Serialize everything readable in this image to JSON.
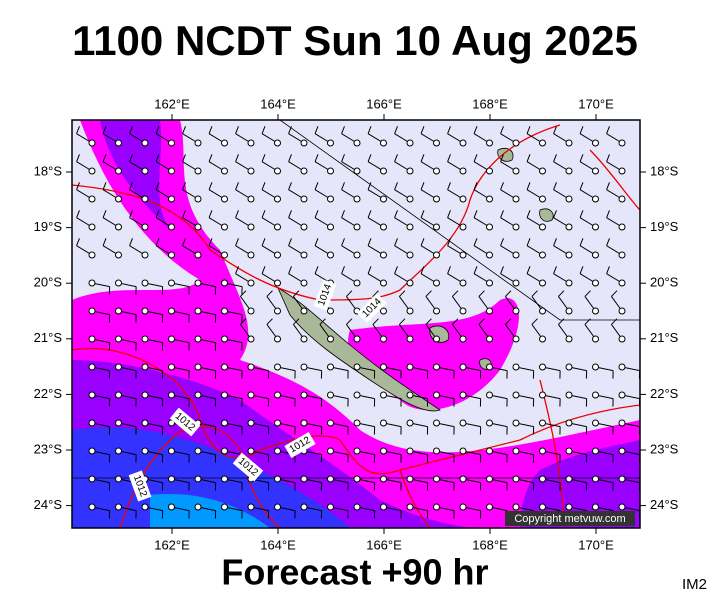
{
  "title": "1100 NCDT Sun 10 Aug 2025",
  "map": {
    "lon_labels": [
      "162°E",
      "164°E",
      "166°E",
      "168°E",
      "170°E"
    ],
    "lat_labels": [
      "18°S",
      "19°S",
      "20°S",
      "21°S",
      "22°S",
      "23°S",
      "24°S"
    ],
    "isobar_labels": [
      "1014",
      "1014",
      "1012",
      "1012",
      "1012",
      "1012"
    ],
    "copyright": "Copyright metvuw.com"
  },
  "footer": "Forecast +90 hr",
  "tag": "IM2"
}
